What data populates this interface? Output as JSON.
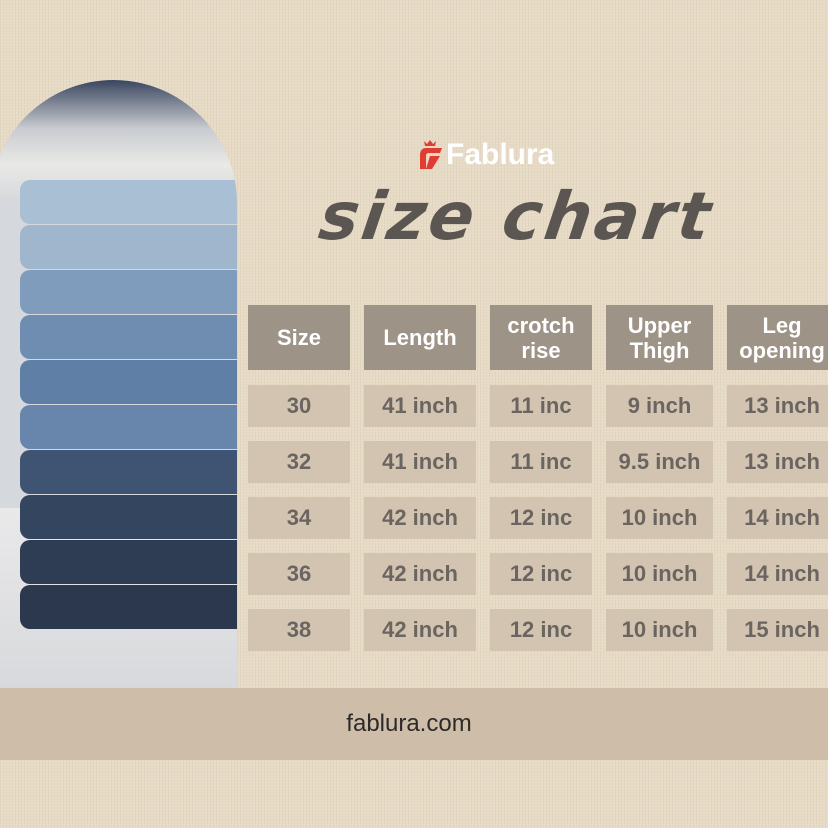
{
  "brand": {
    "name": "Fablura",
    "accent": "#e23b32"
  },
  "title": "size chart",
  "table": {
    "headers": [
      "Size",
      "Length",
      "crotch rise",
      "Upper Thigh",
      "Leg opening"
    ],
    "rows": [
      [
        "30",
        "41 inch",
        "11 inc",
        "9 inch",
        "13 inch"
      ],
      [
        "32",
        "41 inch",
        "11 inc",
        "9.5 inch",
        "13 inch"
      ],
      [
        "34",
        "42 inch",
        "12 inc",
        "10 inch",
        "14 inch"
      ],
      [
        "36",
        "42 inch",
        "12 inc",
        "10 inch",
        "14 inch"
      ],
      [
        "38",
        "42 inch",
        "12 inc",
        "10 inch",
        "15 inch"
      ]
    ]
  },
  "footer": {
    "website": "fablura.com"
  },
  "image": {
    "subject": "jeans-stack-photo"
  }
}
